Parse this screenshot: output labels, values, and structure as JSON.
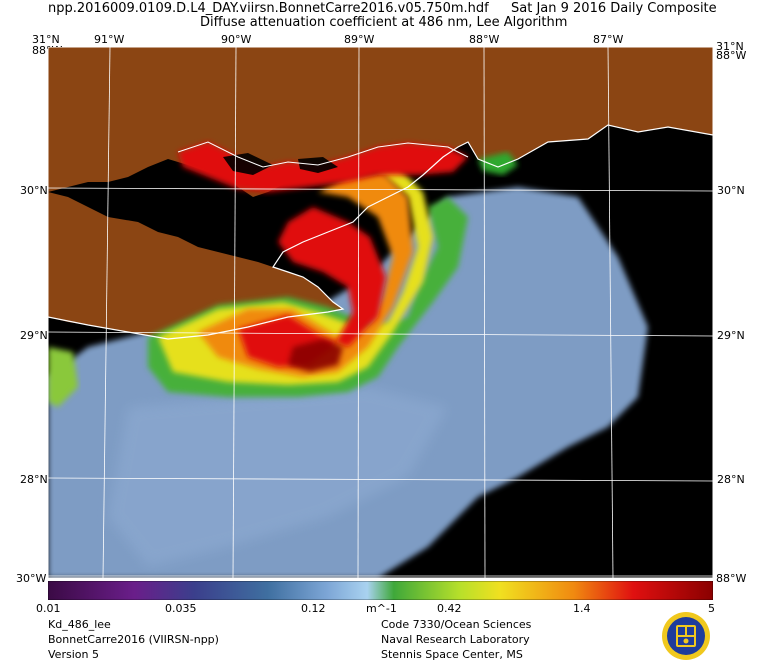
{
  "header": {
    "filename": "npp.2016009.0109.D.L4_DAY.viirsn.BonnetCarre2016.v05.750m.hdf",
    "date": "Sat Jan  9 2016 Daily Composite",
    "subtitle": "Diffuse attenuation coefficient at 486 nm, Lee Algorithm"
  },
  "axes": {
    "top_left_corner": "31°N",
    "top_right_corner": "31°N",
    "top_left_overlap": "88°W",
    "top_right_overlap": "88°W",
    "bottom_left_corner": "30°W",
    "bottom_right_corner": "88°W",
    "longitudes": [
      "91°W",
      "90°W",
      "89°W",
      "88°W",
      "87°W"
    ],
    "latitudes": [
      "30°N",
      "29°N",
      "28°N"
    ]
  },
  "colorbar": {
    "labels": [
      "0.01",
      "0.035",
      "0.12",
      "m^-1",
      "0.42",
      "1.4",
      "5"
    ],
    "colors": [
      "#3b0a45",
      "#6a1e8a",
      "#3b3f8c",
      "#3f6fa0",
      "#7da6d6",
      "#a9d2f0",
      "#3fa83a",
      "#b8e02a",
      "#f0e020",
      "#f08a10",
      "#e01010",
      "#8a0000"
    ]
  },
  "footer": {
    "left_line1": "Kd_486_lee",
    "left_line2": "BonnetCarre2016 (VIIRSN-npp)",
    "left_line3": "Version 5",
    "right_line1": "Code 7330/Ocean Sciences",
    "right_line2": "Naval Research Laboratory",
    "right_line3": "Stennis Space Center, MS"
  },
  "map_colors": {
    "land": "#8b4513",
    "ocean_dark": "#000000",
    "ocean_blue": "#7e9cc4",
    "grid": "#ffffff"
  }
}
